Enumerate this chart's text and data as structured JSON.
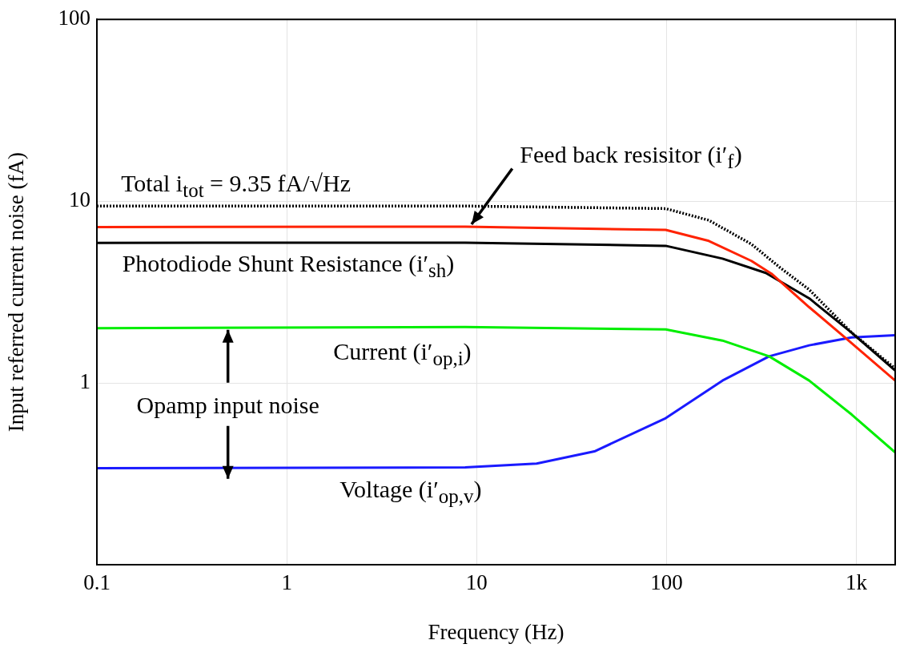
{
  "chart_data": {
    "type": "line",
    "xlabel": "Frequency (Hz)",
    "ylabel": "Input referred current noise (fA)",
    "log": "xy",
    "grid": true,
    "legend": "top left",
    "marker": "none",
    "xlim": [
      0.1,
      1600
    ],
    "xticks": [
      0.1,
      1,
      10,
      100,
      {
        "value": 1000,
        "label": "1k"
      }
    ],
    "ylim": [
      0.1,
      100
    ],
    "yticks": [
      1,
      10,
      100
    ],
    "series": [
      {
        "name": "Total i$_{tot}$ = 9.35 fA/√Hz",
        "color": "#000000",
        "line_style": "dotted",
        "x": [
          0.1,
          8.7,
          99,
          167,
          280,
          397,
          564,
          944,
          1600
        ],
        "values": [
          9.4,
          9.4,
          9.1,
          7.85,
          5.8,
          4.3,
          3.26,
          1.89,
          1.2
        ]
      },
      {
        "name": "Feed back resisitor (i′$_{f}$)",
        "color": "#ff2200",
        "line_style": "solid",
        "x": [
          0.1,
          8.7,
          99,
          167,
          280,
          357,
          564,
          881,
          1600
        ],
        "values": [
          7.2,
          7.24,
          6.95,
          6.04,
          4.69,
          3.99,
          2.61,
          1.76,
          1.03
        ]
      },
      {
        "name": "Photodiode Shunt Resistance (i′$_{sh}$)",
        "color": "#000000",
        "line_style": "solid",
        "x": [
          0.1,
          8.7,
          99,
          197,
          333,
          564,
          944,
          1600
        ],
        "values": [
          5.9,
          5.91,
          5.68,
          4.83,
          4.03,
          2.92,
          1.89,
          1.17
        ]
      },
      {
        "name": "Current (i′$_{op,i}$)",
        "color": "#00ee00",
        "line_style": "solid",
        "x": [
          0.1,
          8.7,
          99,
          197,
          347,
          564,
          944,
          1600
        ],
        "values": [
          2.0,
          2.03,
          1.97,
          1.71,
          1.4,
          1.03,
          0.67,
          0.415
        ]
      },
      {
        "name": "Voltage (i′$_{op,v}$)",
        "color": "#1a1aff",
        "line_style": "solid",
        "x": [
          0.1,
          8.7,
          20.7,
          41.7,
          99,
          197,
          347,
          564,
          944,
          1600
        ],
        "values": [
          0.34,
          0.343,
          0.36,
          0.42,
          0.64,
          1.03,
          1.4,
          1.61,
          1.78,
          1.83
        ]
      }
    ],
    "annotations": [
      {
        "text": "Opamp input noise",
        "x": 0.49,
        "y": 2.0
      }
    ]
  }
}
